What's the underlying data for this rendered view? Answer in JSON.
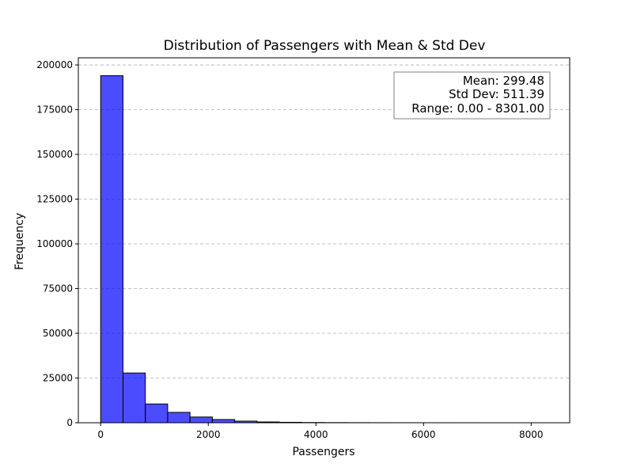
{
  "chart_data": {
    "type": "bar",
    "title": "Distribution of Passengers with Mean & Std Dev",
    "xlabel": "Passengers",
    "ylabel": "Frequency",
    "xlim": [
      -415,
      8716
    ],
    "ylim": [
      0,
      204000
    ],
    "x_ticks": [
      0,
      2000,
      4000,
      6000,
      8000
    ],
    "y_ticks": [
      0,
      25000,
      50000,
      75000,
      100000,
      125000,
      150000,
      175000,
      200000
    ],
    "grid": "y-dashed",
    "bar_color": "#0000ff",
    "bar_alpha": 0.7,
    "edge_color": "#000000",
    "bin_edges": [
      0,
      415.05,
      830.1,
      1245.15,
      1660.2,
      2075.25,
      2490.3,
      2905.35,
      3320.4,
      3735.45,
      4150.5,
      4565.55,
      4980.6,
      5395.65,
      5810.7,
      6225.75,
      6640.8,
      7055.85,
      7470.9,
      7885.95,
      8301
    ],
    "values": [
      194000,
      27800,
      10500,
      5800,
      3200,
      1800,
      900,
      450,
      250,
      130,
      80,
      50,
      30,
      20,
      12,
      8,
      5,
      3,
      2,
      1
    ],
    "stats_box": {
      "lines": [
        "Mean: 299.48",
        "Std Dev: 511.39",
        "Range: 0.00 - 8301.00"
      ],
      "placement": "top-right"
    }
  }
}
